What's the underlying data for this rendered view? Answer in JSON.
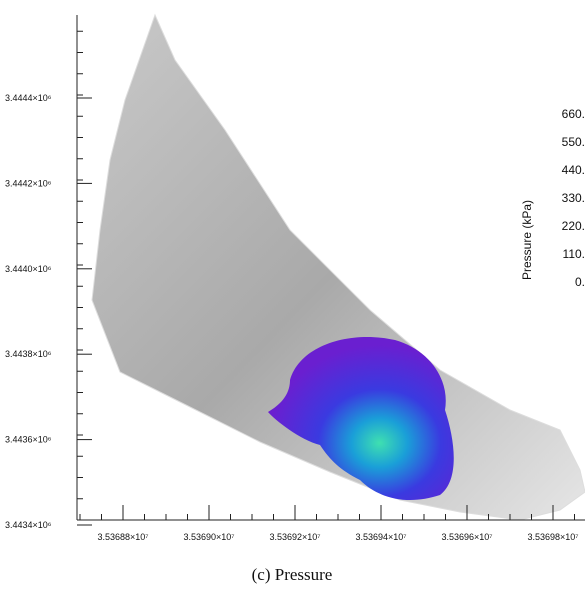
{
  "figure": {
    "yticks": [
      "3.4444×10⁶",
      "3.4442×10⁶",
      "3.4440×10⁶",
      "3.4438×10⁶",
      "3.4436×10⁶",
      "3.4434×10⁶"
    ],
    "xticks": [
      "3.53688×10⁷",
      "3.53690×10⁷",
      "3.53692×10⁷",
      "3.53694×10⁷",
      "3.53696×10⁷",
      "3.53698×10⁷"
    ],
    "colorbar": {
      "label": "Pressure (kPa)",
      "ticks": [
        "660.",
        "550.",
        "440.",
        "330.",
        "220.",
        "110.",
        "0."
      ]
    },
    "caption": "(c) Pressure"
  }
}
